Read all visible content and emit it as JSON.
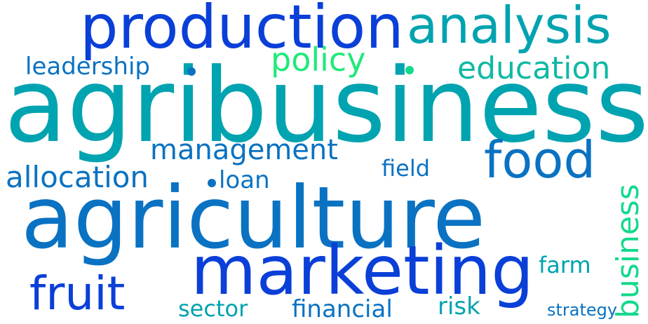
{
  "words": {
    "agribusiness": "agribusiness",
    "agriculture": "agriculture",
    "production": "production",
    "analysis": "analysis",
    "marketing": "marketing",
    "food": "food",
    "fruit": "fruit",
    "policy": "policy",
    "education": "education",
    "management": "management",
    "allocation": "allocation",
    "leadership": "leadership",
    "business": "business",
    "field": "field",
    "loan": "loan",
    "farm": "farm",
    "sector": "sector",
    "financial": "financial",
    "risk": "risk",
    "strategy": "strategy"
  },
  "colors": {
    "background": "#ffffff",
    "blue": "#0a3fd8",
    "cerulean": "#0a72c2",
    "teal": "#00a3b0",
    "aqua": "#0fb9a4",
    "green": "#14d98b",
    "mint": "#1eea7a"
  }
}
